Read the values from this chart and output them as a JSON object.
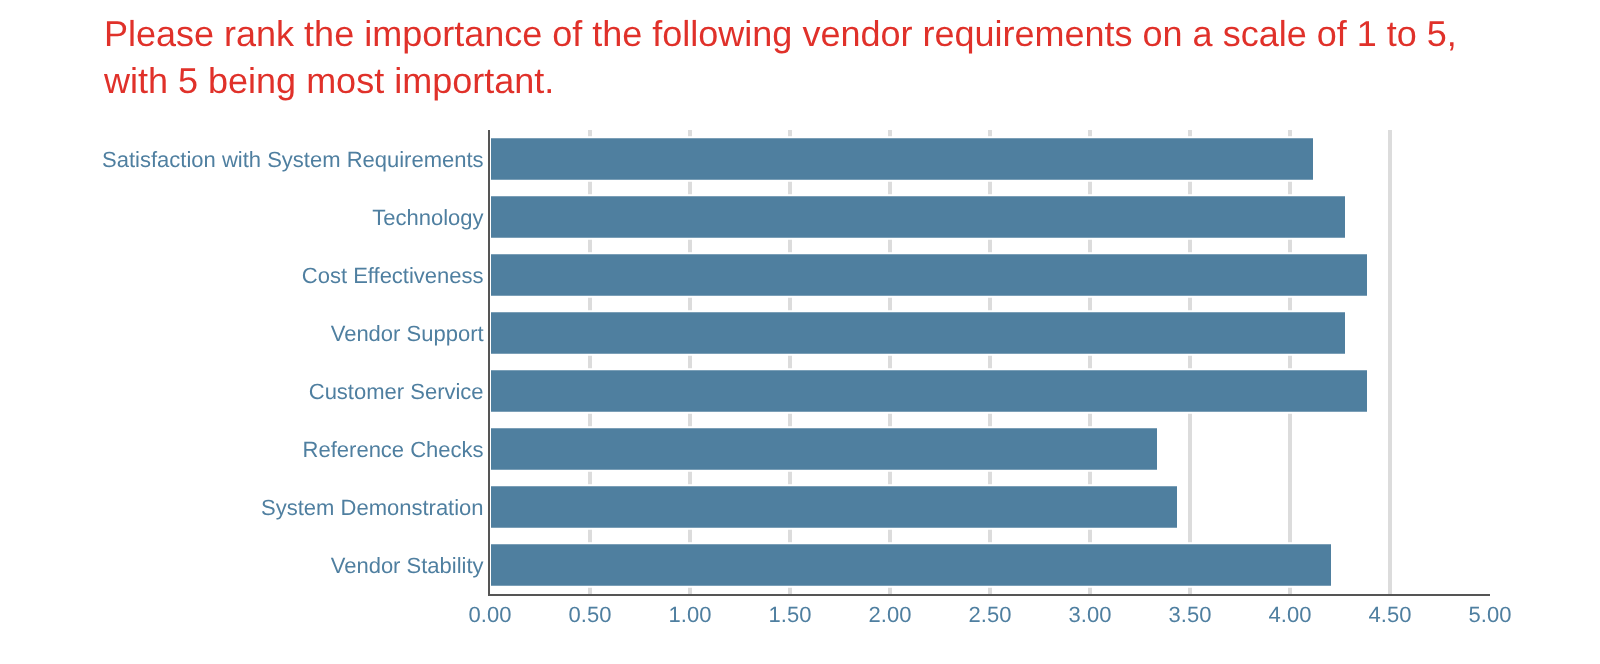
{
  "chart_data": {
    "type": "bar",
    "orientation": "horizontal",
    "title": "Please rank the importance of the following vendor requirements on a scale of 1 to 5,\nwith 5 being most important.",
    "categories": [
      "Satisfaction with System Requirements",
      "Technology",
      "Cost Effectiveness",
      "Vendor Support",
      "Customer Service",
      "Reference Checks",
      "System Demonstration",
      "Vendor Stability"
    ],
    "values": [
      4.12,
      4.28,
      4.39,
      4.28,
      4.39,
      3.34,
      3.44,
      4.21
    ],
    "color": "#4f7f9f",
    "xlim": [
      0,
      5
    ],
    "xticks": [
      {
        "value": 0,
        "label": "0.00"
      },
      {
        "value": 0.5,
        "label": "0.50"
      },
      {
        "value": 1,
        "label": "1.00"
      },
      {
        "value": 1.5,
        "label": "1.50"
      },
      {
        "value": 2,
        "label": "2.00"
      },
      {
        "value": 2.5,
        "label": "2.50"
      },
      {
        "value": 3,
        "label": "3.00"
      },
      {
        "value": 3.5,
        "label": "3.50"
      },
      {
        "value": 4,
        "label": "4.00"
      },
      {
        "value": 4.5,
        "label": "4.50"
      },
      {
        "value": 5,
        "label": "5.00"
      }
    ],
    "grid": "x"
  }
}
